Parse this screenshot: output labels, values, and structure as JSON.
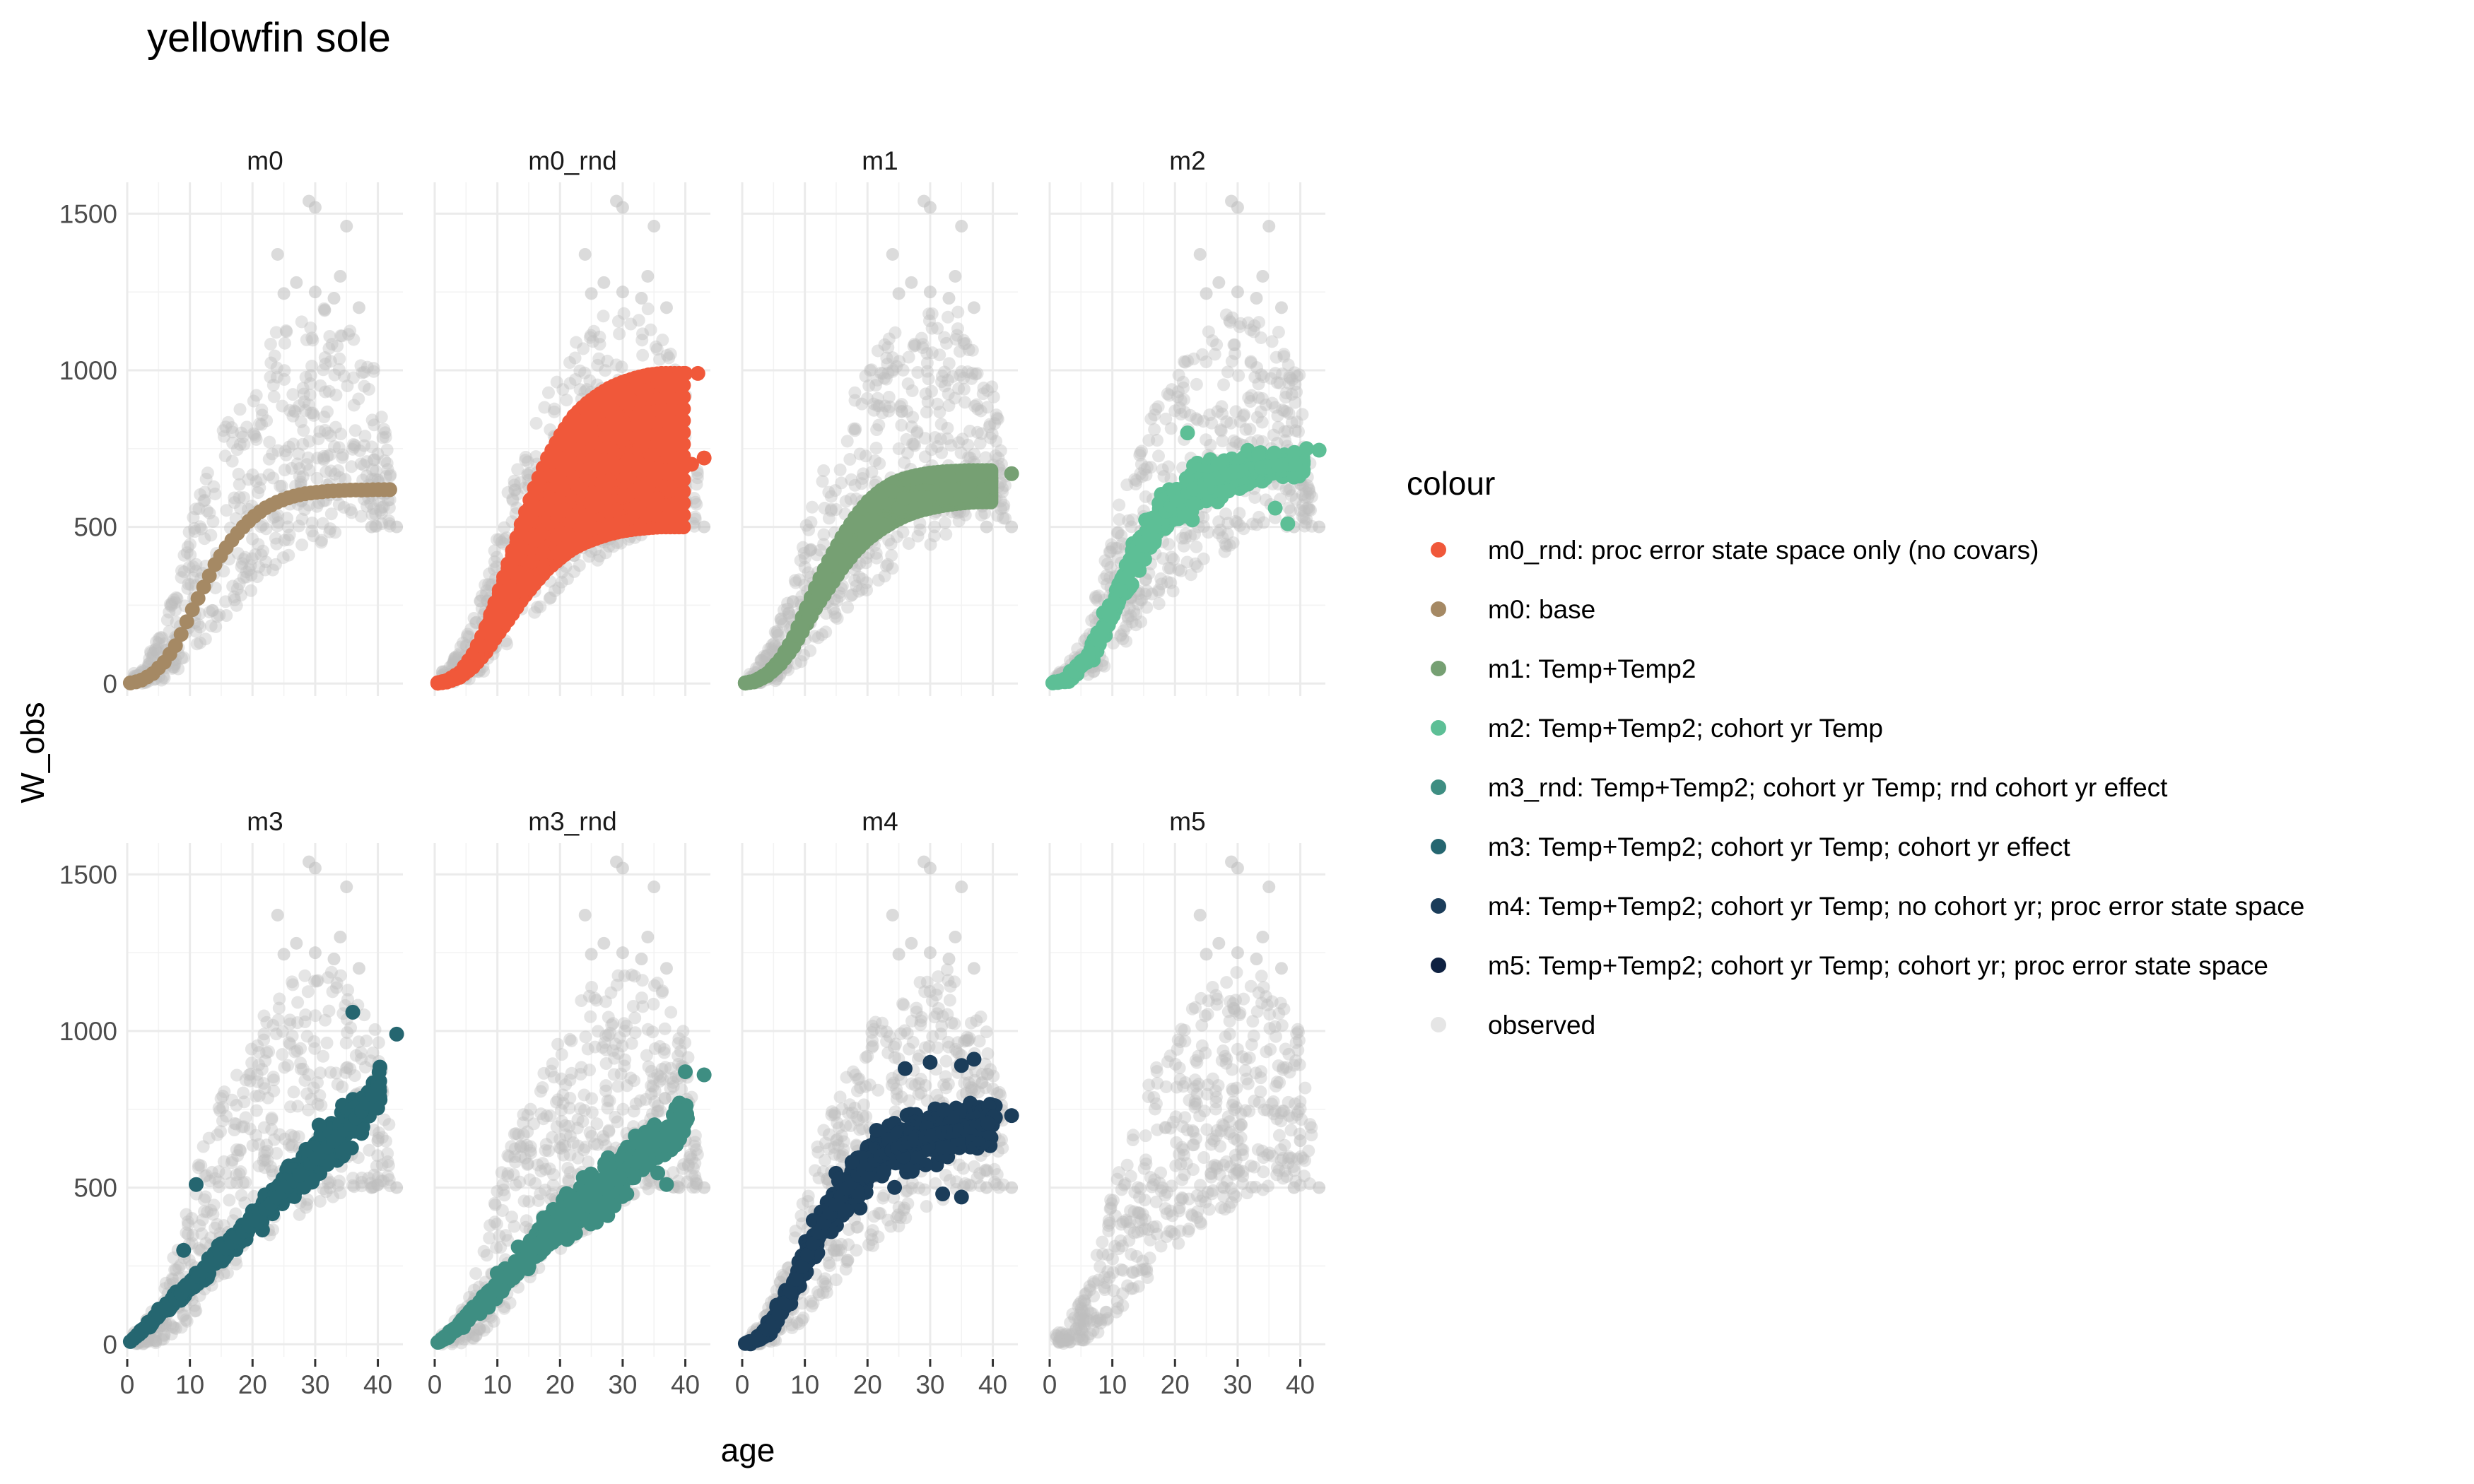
{
  "title": "yellowfin sole",
  "chart_data": {
    "type": "scatter",
    "title": "yellowfin sole",
    "xlabel": "age",
    "ylabel": "W_obs",
    "xlim": [
      0,
      44
    ],
    "ylim": [
      -40,
      1600
    ],
    "x_ticks": [
      0,
      10,
      20,
      30,
      40
    ],
    "x_tick_labels": [
      "0",
      "10",
      "20",
      "30",
      "40"
    ],
    "y_ticks": [
      0,
      500,
      1000,
      1500
    ],
    "y_tick_labels": [
      "0",
      "500",
      "1000",
      "1500"
    ],
    "grid": true,
    "facet_rows": 2,
    "facet_cols": 4,
    "legend": {
      "title": "colour",
      "position": "right",
      "items": [
        {
          "key": "m0_rnd",
          "label": "m0_rnd: proc error state space only (no covars)",
          "color": "#F0583A"
        },
        {
          "key": "m0",
          "label": "m0: base",
          "color": "#A58964"
        },
        {
          "key": "m1",
          "label": "m1: Temp+Temp2",
          "color": "#76A073"
        },
        {
          "key": "m2",
          "label": "m2: Temp+Temp2; cohort yr Temp",
          "color": "#5DBF96"
        },
        {
          "key": "m3_rnd",
          "label": "m3_rnd: Temp+Temp2; cohort yr Temp; rnd cohort yr effect",
          "color": "#3E8E82"
        },
        {
          "key": "m3",
          "label": "m3: Temp+Temp2; cohort yr Temp; cohort yr effect",
          "color": "#256670"
        },
        {
          "key": "m4",
          "label": "m4: Temp+Temp2; cohort yr Temp; no cohort yr; proc error state space",
          "color": "#1B3D5A"
        },
        {
          "key": "m5",
          "label": "m5: Temp+Temp2; cohort yr Temp; cohort yr; proc error state space",
          "color": "#0E2141"
        },
        {
          "key": "observed",
          "label": "observed",
          "color": "#BEBEBE"
        }
      ]
    },
    "observed": {
      "name": "observed",
      "color": "#BEBEBE",
      "description_points": {
        "x": [
          2,
          5,
          8,
          10,
          12,
          15,
          18,
          20,
          22,
          24,
          26,
          28,
          30,
          32,
          34,
          36,
          38,
          40,
          43
        ],
        "y_low": [
          0,
          5,
          40,
          80,
          130,
          200,
          260,
          300,
          330,
          360,
          390,
          420,
          440,
          460,
          480,
          500,
          500,
          500,
          500
        ],
        "y_high": [
          40,
          150,
          320,
          500,
          640,
          800,
          930,
          1000,
          1080,
          1130,
          1170,
          1180,
          1190,
          1200,
          1200,
          1150,
          1050,
          1000,
          500
        ]
      },
      "outliers": [
        {
          "x": 29,
          "y": 1540
        },
        {
          "x": 30,
          "y": 1520
        },
        {
          "x": 35,
          "y": 1460
        },
        {
          "x": 24,
          "y": 1370
        },
        {
          "x": 34,
          "y": 1300
        },
        {
          "x": 27,
          "y": 1280
        },
        {
          "x": 33,
          "y": 1230
        },
        {
          "x": 30,
          "y": 1250
        },
        {
          "x": 25,
          "y": 1245
        },
        {
          "x": 37,
          "y": 1200
        },
        {
          "x": 40,
          "y": 650
        },
        {
          "x": 43,
          "y": 500
        },
        {
          "x": 39,
          "y": 500
        }
      ]
    },
    "panels": [
      {
        "name": "m0",
        "series": "m0",
        "color": "#A58964",
        "kind": "curve",
        "x": [
          0,
          2,
          4,
          6,
          8,
          10,
          12,
          14,
          16,
          18,
          20,
          22,
          24,
          26,
          28,
          30,
          32,
          34,
          36,
          38,
          40,
          42
        ],
        "y": [
          0,
          8,
          30,
          70,
          130,
          220,
          300,
          380,
          440,
          490,
          530,
          560,
          580,
          595,
          605,
          610,
          614,
          616,
          618,
          618,
          619,
          619
        ]
      },
      {
        "name": "m0_rnd",
        "series": "m0_rnd",
        "color": "#F0583A",
        "kind": "fan",
        "x": [
          0,
          2,
          4,
          6,
          8,
          10,
          12,
          14,
          16,
          18,
          20,
          22,
          24,
          26,
          28,
          30,
          32,
          34,
          36,
          38,
          40,
          42
        ],
        "y_low": [
          0,
          5,
          20,
          50,
          95,
          155,
          210,
          270,
          320,
          365,
          400,
          430,
          450,
          465,
          478,
          487,
          493,
          497,
          500,
          500,
          500,
          500
        ],
        "y_high": [
          0,
          10,
          35,
          90,
          170,
          280,
          400,
          520,
          630,
          720,
          790,
          850,
          890,
          920,
          945,
          962,
          975,
          985,
          990,
          990,
          990,
          990
        ],
        "outer_x": [
          40,
          42,
          43,
          39,
          41
        ],
        "outer_y": [
          990,
          990,
          720,
          950,
          700
        ]
      },
      {
        "name": "m1",
        "series": "m1",
        "color": "#76A073",
        "kind": "fan",
        "x": [
          0,
          2,
          4,
          6,
          8,
          10,
          12,
          14,
          16,
          18,
          20,
          22,
          24,
          26,
          28,
          30,
          32,
          34,
          36,
          38,
          40,
          42
        ],
        "y_low": [
          0,
          6,
          25,
          60,
          110,
          180,
          250,
          310,
          370,
          420,
          460,
          490,
          515,
          535,
          550,
          560,
          568,
          574,
          578,
          580,
          580,
          580
        ],
        "y_high": [
          0,
          8,
          32,
          75,
          140,
          230,
          320,
          400,
          470,
          530,
          580,
          615,
          640,
          655,
          665,
          672,
          676,
          678,
          680,
          680,
          680,
          680
        ],
        "outer_x": [
          43
        ],
        "outer_y": [
          670
        ]
      },
      {
        "name": "m2",
        "series": "m2",
        "color": "#5DBF96",
        "kind": "noisy",
        "x": [
          0,
          2,
          4,
          6,
          8,
          10,
          12,
          14,
          16,
          18,
          20,
          22,
          24,
          26,
          28,
          30,
          32,
          34,
          36,
          38,
          40,
          42
        ],
        "y": [
          0,
          8,
          35,
          85,
          150,
          240,
          330,
          410,
          480,
          540,
          580,
          610,
          630,
          650,
          665,
          675,
          685,
          690,
          695,
          700,
          700,
          700
        ],
        "spread": [
          0,
          10,
          25,
          45,
          60,
          70,
          80,
          85,
          90,
          95,
          100,
          100,
          100,
          100,
          90,
          80,
          75,
          70,
          60,
          55,
          50,
          40
        ],
        "outer_x": [
          22,
          43,
          41,
          36,
          38
        ],
        "outer_y": [
          800,
          745,
          750,
          560,
          510
        ]
      },
      {
        "name": "m3",
        "series": "m3",
        "color": "#256670",
        "kind": "noisy",
        "x": [
          0,
          2,
          4,
          6,
          8,
          10,
          12,
          14,
          16,
          18,
          20,
          22,
          24,
          26,
          28,
          30,
          32,
          34,
          36,
          38,
          40,
          42
        ],
        "y": [
          0,
          35,
          75,
          115,
          150,
          190,
          230,
          270,
          310,
          350,
          390,
          430,
          470,
          510,
          550,
          590,
          630,
          670,
          710,
          760,
          820,
          880
        ],
        "spread": [
          0,
          10,
          20,
          25,
          30,
          35,
          40,
          45,
          50,
          55,
          60,
          65,
          70,
          80,
          90,
          100,
          110,
          110,
          100,
          90,
          80,
          70
        ],
        "outer_x": [
          36,
          43,
          11,
          9
        ],
        "outer_y": [
          1060,
          990,
          510,
          300
        ]
      },
      {
        "name": "m3_rnd",
        "series": "m3_rnd",
        "color": "#3E8E82",
        "kind": "noisy",
        "x": [
          0,
          2,
          4,
          6,
          8,
          10,
          12,
          14,
          16,
          18,
          20,
          22,
          24,
          26,
          28,
          30,
          32,
          34,
          36,
          38,
          40,
          42
        ],
        "y": [
          0,
          25,
          60,
          100,
          140,
          185,
          230,
          270,
          310,
          350,
          390,
          430,
          460,
          490,
          520,
          550,
          580,
          610,
          640,
          680,
          720,
          760
        ],
        "spread": [
          0,
          10,
          20,
          30,
          40,
          50,
          60,
          70,
          80,
          90,
          100,
          110,
          120,
          120,
          120,
          110,
          110,
          110,
          100,
          90,
          80,
          70
        ],
        "outer_x": [
          43,
          40,
          37
        ],
        "outer_y": [
          860,
          870,
          510
        ]
      },
      {
        "name": "m4",
        "series": "m4",
        "color": "#1B3D5A",
        "kind": "noisy",
        "x": [
          0,
          2,
          4,
          6,
          8,
          10,
          12,
          14,
          16,
          18,
          20,
          22,
          24,
          26,
          28,
          30,
          32,
          34,
          36,
          38,
          40,
          42
        ],
        "y": [
          0,
          10,
          45,
          100,
          180,
          270,
          350,
          420,
          480,
          530,
          570,
          600,
          620,
          640,
          655,
          665,
          675,
          680,
          690,
          700,
          710,
          720
        ],
        "spread": [
          0,
          10,
          30,
          55,
          70,
          85,
          100,
          110,
          120,
          125,
          130,
          135,
          140,
          140,
          140,
          135,
          130,
          120,
          110,
          100,
          90,
          70
        ],
        "outer_x": [
          26,
          30,
          35,
          37,
          43,
          32,
          35
        ],
        "outer_y": [
          880,
          900,
          890,
          910,
          730,
          480,
          470
        ]
      },
      {
        "name": "m5",
        "series": "m5",
        "color": "#0E2141",
        "kind": "none",
        "x": [],
        "y": []
      }
    ]
  }
}
